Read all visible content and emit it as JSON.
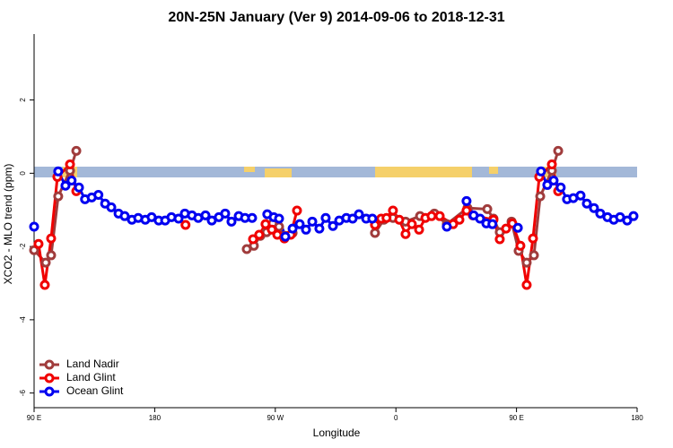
{
  "chart_data": {
    "type": "line",
    "title": "20N-25N January (Ver 9)   2014-09-06 to 2018-12-31",
    "x_label": "Longitude",
    "y_label": "XCO2 - MLO trend (ppm)",
    "xlim": [
      90,
      540
    ],
    "ylim": [
      -6.4,
      3.8
    ],
    "xticks": [
      {
        "value": 90,
        "label": "90 E"
      },
      {
        "value": 180,
        "label": "180"
      },
      {
        "value": 270,
        "label": "90 W"
      },
      {
        "value": 360,
        "label": "0"
      },
      {
        "value": 450,
        "label": "90 E"
      },
      {
        "value": 540,
        "label": "180"
      }
    ],
    "yticks": [
      -6,
      -4,
      -2,
      0,
      2
    ],
    "legend": "bottom-left",
    "series": [
      {
        "name": "Land Nadir",
        "color": "#a03c3c",
        "x": [
          90,
          98.7,
          102.7,
          108,
          116.8,
          121.5,
          null,
          248.7,
          254,
          258.8,
          263.5,
          268,
          272.8,
          277.5,
          282.9,
          null,
          344.4,
          351,
          357.8,
          367.2,
          378,
          388.7,
          398,
          413.4,
          428.2,
          432.8,
          437.5,
          446.3,
          451.6,
          457.6,
          463,
          467.7,
          476.4,
          481.1
        ],
        "values": [
          -2.1,
          -2.44,
          -2.24,
          -0.63,
          0.07,
          0.61,
          null,
          -2.07,
          -1.98,
          -1.71,
          -1.61,
          -1.37,
          -1.46,
          -1.71,
          -1.63,
          null,
          -1.63,
          -1.27,
          -1.22,
          -1.32,
          -1.17,
          -1.1,
          -1.39,
          -0.95,
          -0.98,
          -1.24,
          -1.61,
          -1.32,
          -2.12,
          -2.44,
          -2.24,
          -0.63,
          0.07,
          0.61
        ]
      },
      {
        "name": "Land Glint",
        "color": "#f00000",
        "x": [
          93.3,
          98,
          102.7,
          107.4,
          116.8,
          121.5,
          null,
          203,
          null,
          253.4,
          258,
          262.7,
          267.4,
          271.5,
          276.8,
          281.5,
          286.2,
          null,
          344.4,
          349,
          353,
          357.8,
          362.5,
          367.2,
          371.9,
          377.3,
          382,
          386.6,
          392.7,
          402.7,
          407.4,
          412.7,
          417.4,
          432.8,
          437.5,
          442.2,
          446.9,
          452.9,
          457.6,
          462.3,
          467,
          476.4,
          481.1
        ],
        "values": [
          -1.93,
          -3.05,
          -1.78,
          -0.1,
          0.24,
          -0.49,
          null,
          -1.41,
          null,
          -1.8,
          -1.68,
          -1.39,
          -1.54,
          -1.68,
          -1.78,
          -1.68,
          -1.02,
          null,
          -1.41,
          -1.24,
          -1.22,
          -1.02,
          -1.27,
          -1.66,
          -1.39,
          -1.54,
          -1.22,
          -1.17,
          -1.17,
          -1.39,
          -1.27,
          -1.02,
          -1.15,
          -1.27,
          -1.8,
          -1.51,
          -1.37,
          -1.98,
          -3.05,
          -1.78,
          -0.1,
          0.24,
          -0.49
        ]
      },
      {
        "name": "Ocean Glint",
        "color": "#0000f0",
        "x": [
          90,
          null,
          108,
          113.4,
          118,
          123.5,
          128,
          133,
          138,
          143,
          147.6,
          153,
          157.6,
          163,
          167.7,
          173,
          177.7,
          183,
          187.8,
          192.5,
          197.8,
          202.5,
          207.8,
          212.5,
          217.9,
          222.6,
          227.9,
          232.6,
          237.3,
          242.7,
          247.4,
          252.7,
          null,
          264,
          268.8,
          272.8,
          277.5,
          282.9,
          288.2,
          292.9,
          297.6,
          302.9,
          307.6,
          313,
          317.7,
          323,
          327.7,
          332.4,
          337.8,
          342.4,
          null,
          398,
          null,
          412.7,
          418,
          422.8,
          427.5,
          432,
          null,
          451,
          null,
          468.3,
          473,
          477.7,
          483,
          487.7,
          492.4,
          497.8,
          502.5,
          507.8,
          512.5,
          517.9,
          522.6,
          527.3,
          532.6,
          537.3
        ],
        "values": [
          -1.46,
          null,
          0.05,
          -0.34,
          -0.2,
          -0.39,
          -0.71,
          -0.66,
          -0.59,
          -0.83,
          -0.93,
          -1.1,
          -1.17,
          -1.27,
          -1.22,
          -1.27,
          -1.2,
          -1.29,
          -1.29,
          -1.2,
          -1.24,
          -1.1,
          -1.15,
          -1.22,
          -1.15,
          -1.29,
          -1.2,
          -1.1,
          -1.32,
          -1.17,
          -1.22,
          -1.22,
          null,
          -1.12,
          -1.2,
          -1.24,
          -1.73,
          -1.51,
          -1.39,
          -1.54,
          -1.32,
          -1.51,
          -1.22,
          -1.44,
          -1.29,
          -1.22,
          -1.24,
          -1.12,
          -1.24,
          -1.24,
          null,
          -1.46,
          null,
          -0.76,
          -1.15,
          -1.24,
          -1.37,
          -1.39,
          null,
          -1.49,
          null,
          0.05,
          -0.32,
          -0.2,
          -0.39,
          -0.71,
          -0.68,
          -0.61,
          -0.83,
          -0.95,
          -1.1,
          -1.2,
          -1.27,
          -1.2,
          -1.29,
          -1.17
        ]
      }
    ]
  }
}
